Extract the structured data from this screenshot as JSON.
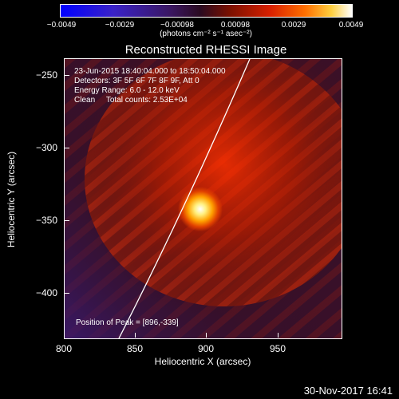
{
  "colorbar": {
    "ticks": [
      "−0.0049",
      "−0.0029",
      "−0.00098",
      "0.00098",
      "0.0029",
      "0.0049"
    ],
    "units": "(photons cm⁻² s⁻¹ asec⁻²)"
  },
  "plot": {
    "title": "Reconstructed RHESSI Image",
    "time_range": "23-Jun-2015 18:40:04.000 to 18:50:04.000",
    "detectors": "Detectors: 3F 5F 6F 7F 8F 9F, Att 0",
    "energy_range": "Energy Range: 6.0 - 12.0 keV",
    "clean_counts": "Clean     Total counts: 2.53E+04",
    "peak": "Position of Peak = [896,-339]",
    "x_axis": {
      "label": "Heliocentric X (arcsec)",
      "ticks": [
        "800",
        "850",
        "900",
        "950"
      ],
      "range": [
        800,
        990
      ]
    },
    "y_axis": {
      "label": "Heliocentric Y (arcsec)",
      "ticks": [
        "−250",
        "−300",
        "−350",
        "−400"
      ],
      "range": [
        -430,
        -238
      ]
    },
    "peak_position": [
      896,
      -339
    ]
  },
  "footer": {
    "date": "30-Nov-2017 16:41"
  },
  "colors": {
    "limb": "#ffffff",
    "background": "#000000"
  }
}
